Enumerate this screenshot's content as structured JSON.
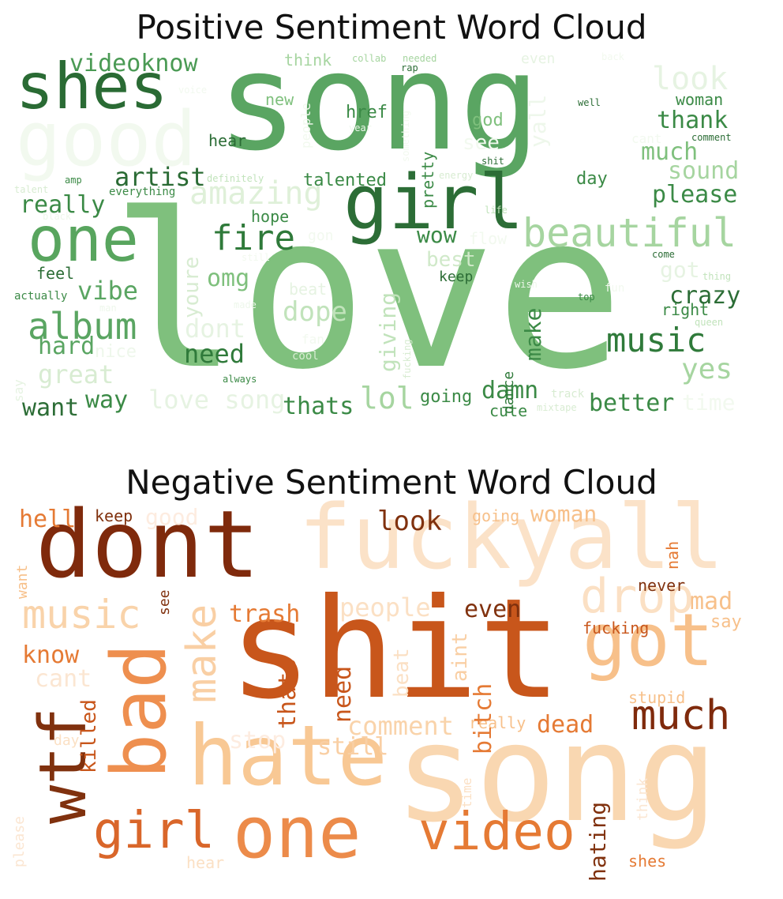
{
  "clouds": [
    {
      "title": "Positive Sentiment Word Cloud",
      "words": [
        {
          "text": "song",
          "color": "#5aa562"
        },
        {
          "text": "love",
          "color": "#7fc07d"
        },
        {
          "text": "girl",
          "color": "#2c6d36"
        },
        {
          "text": "shes",
          "color": "#2a6b34"
        },
        {
          "text": "good",
          "color": "#f2f9ef"
        },
        {
          "text": "one",
          "color": "#58a55e"
        },
        {
          "text": "album",
          "color": "#5aa562"
        },
        {
          "text": "beautiful",
          "color": "#a6d5a0"
        },
        {
          "text": "music",
          "color": "#2f7a3a"
        },
        {
          "text": "fire",
          "color": "#2f7a3a"
        },
        {
          "text": "amazing",
          "color": "#dff0d9"
        },
        {
          "text": "artist",
          "color": "#2a6b34"
        },
        {
          "text": "videoknow",
          "color": "#4a9a54"
        },
        {
          "text": "look",
          "color": "#e6f3e2"
        },
        {
          "text": "thank",
          "color": "#3b8a46"
        },
        {
          "text": "much",
          "color": "#7fc07d"
        },
        {
          "text": "sound",
          "color": "#a6d5a0"
        },
        {
          "text": "please",
          "color": "#3b8a46"
        },
        {
          "text": "really",
          "color": "#3b8a46"
        },
        {
          "text": "crazy",
          "color": "#2c6d36"
        },
        {
          "text": "yes",
          "color": "#a6d5a0"
        },
        {
          "text": "dope",
          "color": "#c1e3bb"
        },
        {
          "text": "need",
          "color": "#2f7a3a"
        },
        {
          "text": "hard",
          "color": "#5aa562"
        },
        {
          "text": "great",
          "color": "#d8ecd2"
        },
        {
          "text": "vibe",
          "color": "#5aa562"
        },
        {
          "text": "want",
          "color": "#2c6d36"
        },
        {
          "text": "way",
          "color": "#3b8a46"
        },
        {
          "text": "thats",
          "color": "#3b8a46"
        },
        {
          "text": "lol",
          "color": "#a6d5a0"
        },
        {
          "text": "better",
          "color": "#3b8a46"
        },
        {
          "text": "damn",
          "color": "#3b8a46"
        },
        {
          "text": "wow",
          "color": "#3b8a46"
        },
        {
          "text": "best",
          "color": "#d0e9c9"
        },
        {
          "text": "omg",
          "color": "#7fc07d"
        },
        {
          "text": "dont",
          "color": "#e6f3e2"
        },
        {
          "text": "love song",
          "color": "#e6f3e2"
        },
        {
          "text": "make",
          "color": "#3b8a46"
        },
        {
          "text": "pretty",
          "color": "#3b8a46"
        },
        {
          "text": "youre",
          "color": "#d8ecd2"
        },
        {
          "text": "giving",
          "color": "#c1e3bb"
        },
        {
          "text": "yall",
          "color": "#eef7eb"
        },
        {
          "text": "see",
          "color": "#f2f9ef"
        },
        {
          "text": "got",
          "color": "#e6f3e2"
        },
        {
          "text": "time",
          "color": "#f2f9ef"
        },
        {
          "text": "talented",
          "color": "#3b8a46"
        },
        {
          "text": "href",
          "color": "#3b8a46"
        },
        {
          "text": "god",
          "color": "#7fc07d"
        },
        {
          "text": "hear",
          "color": "#2c6d36"
        },
        {
          "text": "new",
          "color": "#7fc07d"
        },
        {
          "text": "think",
          "color": "#a6d5a0"
        },
        {
          "text": "hope",
          "color": "#3b8a46"
        },
        {
          "text": "feel",
          "color": "#2c6d36"
        },
        {
          "text": "day",
          "color": "#3b8a46"
        },
        {
          "text": "woman",
          "color": "#3b8a46"
        },
        {
          "text": "keep",
          "color": "#2c6d36"
        },
        {
          "text": "right",
          "color": "#3b8a46"
        },
        {
          "text": "going",
          "color": "#3b8a46"
        },
        {
          "text": "cute",
          "color": "#3b8a46"
        },
        {
          "text": "dance",
          "color": "#2f7a3a"
        },
        {
          "text": "beat",
          "color": "#e6f3e2"
        },
        {
          "text": "nice",
          "color": "#eef7eb"
        },
        {
          "text": "say",
          "color": "#e6f3e2"
        },
        {
          "text": "actually",
          "color": "#3b8a46"
        },
        {
          "text": "everything",
          "color": "#3b8a46"
        },
        {
          "text": "definitely",
          "color": "#c1e3bb"
        },
        {
          "text": "amp",
          "color": "#3b8a46"
        },
        {
          "text": "talent",
          "color": "#d8ecd2"
        },
        {
          "text": "black",
          "color": "#eef7eb"
        },
        {
          "text": "voice",
          "color": "#f2f9ef"
        },
        {
          "text": "people",
          "color": "#f2f9ef"
        },
        {
          "text": "collab",
          "color": "#a6d5a0"
        },
        {
          "text": "needed",
          "color": "#a6d5a0"
        },
        {
          "text": "rap",
          "color": "#2c6d36"
        },
        {
          "text": "even",
          "color": "#e6f3e2"
        },
        {
          "text": "back",
          "color": "#f2f9ef"
        },
        {
          "text": "well",
          "color": "#2c6d36"
        },
        {
          "text": "cant",
          "color": "#f2f9ef"
        },
        {
          "text": "comment",
          "color": "#2c6d36"
        },
        {
          "text": "shit",
          "color": "#2c6d36"
        },
        {
          "text": "energy",
          "color": "#d8ecd2"
        },
        {
          "text": "life",
          "color": "#c1e3bb"
        },
        {
          "text": "flow",
          "color": "#f2f9ef"
        },
        {
          "text": "gon",
          "color": "#f2f9ef"
        },
        {
          "text": "still",
          "color": "#f2f9ef"
        },
        {
          "text": "made",
          "color": "#eef7eb"
        },
        {
          "text": "man",
          "color": "#eef7eb"
        },
        {
          "text": "fan",
          "color": "#f2f9ef"
        },
        {
          "text": "cool",
          "color": "#d8ecd2"
        },
        {
          "text": "always",
          "color": "#3b8a46"
        },
        {
          "text": "fucking",
          "color": "#d8ecd2"
        },
        {
          "text": "track",
          "color": "#d8ecd2"
        },
        {
          "text": "mixtape",
          "color": "#d8ecd2"
        },
        {
          "text": "wish",
          "color": "#eef7eb"
        },
        {
          "text": "fun",
          "color": "#f2f9ef"
        },
        {
          "text": "top",
          "color": "#3b8a46"
        },
        {
          "text": "come",
          "color": "#2c6d36"
        },
        {
          "text": "thing",
          "color": "#c1e3bb"
        },
        {
          "text": "queen",
          "color": "#c1e3bb"
        },
        {
          "text": "year",
          "color": "#eef7eb"
        },
        {
          "text": "something",
          "color": "#f2f9ef"
        }
      ]
    },
    {
      "title": "Negative Sentiment Word Cloud",
      "words": [
        {
          "text": "shit",
          "color": "#c8561b"
        },
        {
          "text": "song",
          "color": "#f9d7b1"
        },
        {
          "text": "dont",
          "color": "#7f2a0c"
        },
        {
          "text": "fuckyall",
          "color": "#fbe2c8"
        },
        {
          "text": "hate",
          "color": "#f8c894"
        },
        {
          "text": "one",
          "color": "#ec8b4a"
        },
        {
          "text": "bad",
          "color": "#ee8f4f"
        },
        {
          "text": "wtf",
          "color": "#80310e"
        },
        {
          "text": "got",
          "color": "#f7c08a"
        },
        {
          "text": "video",
          "color": "#e57a34"
        },
        {
          "text": "girl",
          "color": "#d9662a"
        },
        {
          "text": "much",
          "color": "#7f2a0c"
        },
        {
          "text": "make",
          "color": "#f9cfa4"
        },
        {
          "text": "drop",
          "color": "#fbe0c4"
        },
        {
          "text": "music",
          "color": "#f9d3aa"
        },
        {
          "text": "look",
          "color": "#80310e"
        },
        {
          "text": "trash",
          "color": "#e57a34"
        },
        {
          "text": "people",
          "color": "#fbe0c4"
        },
        {
          "text": "even",
          "color": "#80310e"
        },
        {
          "text": "mad",
          "color": "#f7c08a"
        },
        {
          "text": "say",
          "color": "#f7c08a"
        },
        {
          "text": "know",
          "color": "#e57a34"
        },
        {
          "text": "cant",
          "color": "#fbe6d2"
        },
        {
          "text": "comment",
          "color": "#f9d3aa"
        },
        {
          "text": "dead",
          "color": "#e57a34"
        },
        {
          "text": "stop",
          "color": "#fdece0"
        },
        {
          "text": "still",
          "color": "#f9cfa4"
        },
        {
          "text": "hell",
          "color": "#e57a34"
        },
        {
          "text": "keep",
          "color": "#80310e"
        },
        {
          "text": "good",
          "color": "#fdece0"
        },
        {
          "text": "going",
          "color": "#f7c08a"
        },
        {
          "text": "woman",
          "color": "#f7c08a"
        },
        {
          "text": "never",
          "color": "#80310e"
        },
        {
          "text": "nah",
          "color": "#e57a34"
        },
        {
          "text": "fucking",
          "color": "#c8561b"
        },
        {
          "text": "stupid",
          "color": "#f7c08a"
        },
        {
          "text": "really",
          "color": "#f7c08a"
        },
        {
          "text": "thats",
          "color": "#c8561b"
        },
        {
          "text": "need",
          "color": "#c8561b"
        },
        {
          "text": "beat",
          "color": "#fbe0c4"
        },
        {
          "text": "aint",
          "color": "#f9cfa4"
        },
        {
          "text": "bitch",
          "color": "#e57a34"
        },
        {
          "text": "killed",
          "color": "#c8561b"
        },
        {
          "text": "hating",
          "color": "#80310e"
        },
        {
          "text": "think",
          "color": "#fbe6d2"
        },
        {
          "text": "time",
          "color": "#fbe0c4"
        },
        {
          "text": "want",
          "color": "#f7c08a"
        },
        {
          "text": "see",
          "color": "#80310e"
        },
        {
          "text": "day",
          "color": "#fbe0c4"
        },
        {
          "text": "please",
          "color": "#fbe6d2"
        },
        {
          "text": "hear",
          "color": "#fbe0c4"
        },
        {
          "text": "shes",
          "color": "#e57a34"
        }
      ]
    }
  ]
}
